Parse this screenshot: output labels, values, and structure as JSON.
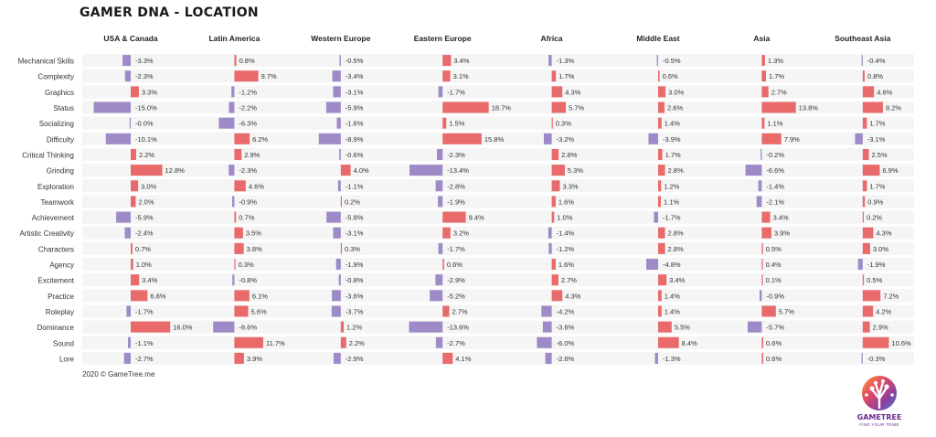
{
  "title": "GAMER DNA - LOCATION",
  "footer": "2020 © GameTree.me",
  "logo": {
    "name": "GAMETREE",
    "tagline": "FIND YOUR TRIBE"
  },
  "colors": {
    "positive": "#e96a6a",
    "negative": "#9d8ac7",
    "row_bg": "#f5f5f5"
  },
  "chart_data": {
    "type": "bar",
    "orientation": "horizontal",
    "panels": [
      "USA & Canada",
      "Latin America",
      "Western Europe",
      "Eastern Europe",
      "Africa",
      "Middle East",
      "Asia",
      "Southeast Asia"
    ],
    "categories": [
      "Mechanical Skills",
      "Complexity",
      "Graphics",
      "Status",
      "Socializing",
      "Difficulty",
      "Critical Thinking",
      "Grinding",
      "Exploration",
      "Teamwork",
      "Achievement",
      "Artistic Creativity",
      "Characters",
      "Agency",
      "Excitement",
      "Practice",
      "Roleplay",
      "Dominance",
      "Sound",
      "Lore"
    ],
    "value_unit": "%",
    "series": [
      {
        "name": "USA & Canada",
        "values": [
          -3.3,
          -2.3,
          3.3,
          -15.0,
          -0.0,
          -10.1,
          2.2,
          12.8,
          3.0,
          2.0,
          -5.9,
          -2.4,
          0.7,
          1.0,
          3.4,
          6.8,
          -1.7,
          16.0,
          -1.1,
          -2.7
        ]
      },
      {
        "name": "Latin America",
        "values": [
          0.8,
          9.7,
          -1.2,
          -2.2,
          -6.3,
          6.2,
          2.9,
          -2.3,
          4.6,
          -0.9,
          0.7,
          3.5,
          3.8,
          0.3,
          -0.8,
          6.1,
          5.6,
          -8.6,
          11.7,
          3.9
        ]
      },
      {
        "name": "Western Europe",
        "values": [
          -0.5,
          -3.4,
          -3.1,
          -5.9,
          -1.6,
          -8.9,
          -0.6,
          4.0,
          -1.1,
          0.2,
          -5.8,
          -3.1,
          0.3,
          -1.9,
          -0.8,
          -3.6,
          -3.7,
          1.2,
          2.2,
          -2.9
        ]
      },
      {
        "name": "Eastern Europe",
        "values": [
          3.4,
          3.1,
          -1.7,
          18.7,
          1.5,
          15.8,
          -2.3,
          -13.4,
          -2.8,
          -1.9,
          9.4,
          3.2,
          -1.7,
          0.6,
          -2.9,
          -5.2,
          2.7,
          -13.6,
          -2.7,
          4.1
        ]
      },
      {
        "name": "Africa",
        "values": [
          -1.3,
          1.7,
          4.3,
          5.7,
          0.3,
          -3.2,
          2.8,
          5.3,
          3.3,
          1.6,
          1.0,
          -1.4,
          -1.2,
          1.6,
          2.7,
          4.3,
          -4.2,
          -3.6,
          -6.0,
          -2.6
        ]
      },
      {
        "name": "Middle East",
        "values": [
          -0.5,
          0.6,
          3.0,
          2.6,
          1.4,
          -3.9,
          1.7,
          2.8,
          1.2,
          1.1,
          -1.7,
          2.8,
          2.8,
          -4.8,
          3.4,
          1.4,
          1.4,
          5.5,
          8.4,
          -1.3
        ]
      },
      {
        "name": "Asia",
        "values": [
          1.3,
          1.7,
          2.7,
          13.8,
          1.1,
          7.9,
          -0.2,
          -6.6,
          -1.4,
          -2.1,
          3.4,
          3.9,
          0.5,
          0.4,
          0.1,
          -0.9,
          5.7,
          -5.7,
          0.6,
          0.6
        ]
      },
      {
        "name": "Southeast Asia",
        "values": [
          -0.4,
          0.8,
          4.6,
          8.2,
          1.7,
          -3.1,
          2.5,
          6.9,
          1.7,
          0.9,
          0.2,
          4.3,
          3.0,
          -1.9,
          0.5,
          7.2,
          4.2,
          2.9,
          10.6,
          -0.3
        ]
      }
    ],
    "value_labels": [
      [
        "-3.3%",
        "-2.3%",
        "3.3%",
        "-15.0%",
        "-0.0%",
        "-10.1%",
        "2.2%",
        "12.8%",
        "3.0%",
        "2.0%",
        "-5.9%",
        "-2.4%",
        "0.7%",
        "1.0%",
        "3.4%",
        "6.8%",
        "-1.7%",
        "16.0%",
        "-1.1%",
        "-2.7%"
      ],
      [
        "0.8%",
        "9.7%",
        "-1.2%",
        "-2.2%",
        "-6.3%",
        "6.2%",
        "2.9%",
        "-2.3%",
        "4.6%",
        "-0.9%",
        "0.7%",
        "3.5%",
        "3.8%",
        "0.3%",
        "-0.8%",
        "6.1%",
        "5.6%",
        "-8.6%",
        "11.7%",
        "3.9%"
      ],
      [
        "-0.5%",
        "-3.4%",
        "-3.1%",
        "-5.9%",
        "-1.6%",
        "-8.9%",
        "-0.6%",
        "4.0%",
        "-1.1%",
        "0.2%",
        "-5.8%",
        "-3.1%",
        "0.3%",
        "-1.9%",
        "-0.8%",
        "-3.6%",
        "-3.7%",
        "1.2%",
        "2.2%",
        "-2.9%"
      ],
      [
        "3.4%",
        "3.1%",
        "-1.7%",
        "18.7%",
        "1.5%",
        "15.8%",
        "-2.3%",
        "-13.4%",
        "-2.8%",
        "-1.9%",
        "9.4%",
        "3.2%",
        "-1.7%",
        "0.6%",
        "-2.9%",
        "-5.2%",
        "2.7%",
        "-13.6%",
        "-2.7%",
        "4.1%"
      ],
      [
        "-1.3%",
        "1.7%",
        "4.3%",
        "5.7%",
        "0.3%",
        "-3.2%",
        "2.8%",
        "5.3%",
        "3.3%",
        "1.6%",
        "1.0%",
        "-1.4%",
        "-1.2%",
        "1.6%",
        "2.7%",
        "4.3%",
        "-4.2%",
        "-3.6%",
        "-6.0%",
        "-2.6%"
      ],
      [
        "-0.5%",
        "0.6%",
        "3.0%",
        "2.6%",
        "1.4%",
        "-3.9%",
        "1.7%",
        "2.8%",
        "1.2%",
        "1.1%",
        "-1.7%",
        "2.8%",
        "2.8%",
        "-4.8%",
        "3.4%",
        "1.4%",
        "1.4%",
        "5.5%",
        "8.4%",
        "-1.3%"
      ],
      [
        "1.3%",
        "1.7%",
        "2.7%",
        "13.8%",
        "1.1%",
        "7.9%",
        "-0.2%",
        "-6.6%",
        "-1.4%",
        "-2.1%",
        "3.4%",
        "3.9%",
        "0.5%",
        "0.4%",
        "0.1%",
        "-0.9%",
        "5.7%",
        "-5.7%",
        "0.6%",
        "0.6%"
      ],
      [
        "-0.4%",
        "0.8%",
        "4.6%",
        "8.2%",
        "1.7%",
        "-3.1%",
        "2.5%",
        "6.9%",
        "1.7%",
        "0.9%",
        "0.2%",
        "4.3%",
        "3.0%",
        "-1.9%",
        "0.5%",
        "7.2%",
        "4.2%",
        "2.9%",
        "10.6%",
        "-0.3%"
      ]
    ],
    "legend": "none",
    "grid": false
  }
}
